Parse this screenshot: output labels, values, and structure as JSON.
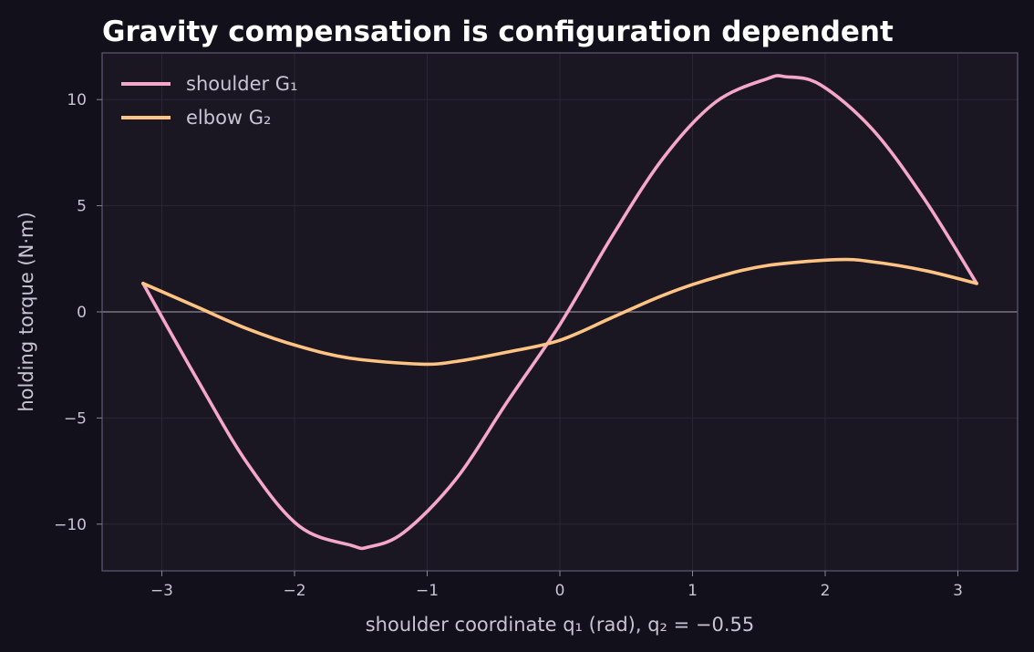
{
  "chart_data": {
    "type": "line",
    "title": "Gravity compensation is configuration dependent",
    "xlabel": "shoulder coordinate q₁ (rad), q₂ = −0.55",
    "ylabel": "holding torque (N·m)",
    "xlim": [
      -3.45,
      3.45
    ],
    "ylim": [
      -12.2,
      12.2
    ],
    "xticks": [
      -3,
      -2,
      -1,
      0,
      1,
      2,
      3
    ],
    "xtick_labels": [
      "−3",
      "−2",
      "−1",
      "0",
      "1",
      "2",
      "3"
    ],
    "yticks": [
      -10,
      -5,
      0,
      5,
      10
    ],
    "ytick_labels": [
      "−10",
      "−5",
      "0",
      "5",
      "10"
    ],
    "grid": true,
    "zero_line": true,
    "legend_position": "top-left",
    "series": [
      {
        "name": "shoulder G₁",
        "color": "#f4a7c8",
        "x": [
          -3.1416,
          -2.7489,
          -2.3562,
          -1.9635,
          -1.5708,
          -1.4429,
          -1.1781,
          -0.7854,
          -0.3927,
          0.0,
          0.3927,
          0.7854,
          1.1781,
          1.5708,
          1.6987,
          1.9635,
          2.3562,
          2.7489,
          3.1416
        ],
        "y": [
          1.34,
          -3.01,
          -7.13,
          -10.1,
          -11.0,
          -11.08,
          -10.4,
          -7.9,
          -4.2,
          -0.6,
          3.55,
          7.3,
          9.9,
          11.0,
          11.08,
          10.7,
          8.6,
          5.3,
          1.34
        ]
      },
      {
        "name": "elbow G₂",
        "color": "#ffc383",
        "x": [
          -3.1416,
          -2.7489,
          -2.3562,
          -1.9635,
          -1.5708,
          -1.0472,
          -0.7854,
          -0.3927,
          0.0,
          0.3927,
          0.7854,
          1.1781,
          1.5708,
          2.0944,
          2.3562,
          2.7489,
          3.1416
        ],
        "y": [
          1.34,
          0.27,
          -0.8,
          -1.63,
          -2.19,
          -2.46,
          -2.34,
          -1.89,
          -1.34,
          -0.27,
          0.8,
          1.63,
          2.19,
          2.46,
          2.36,
          1.95,
          1.34
        ]
      }
    ]
  }
}
